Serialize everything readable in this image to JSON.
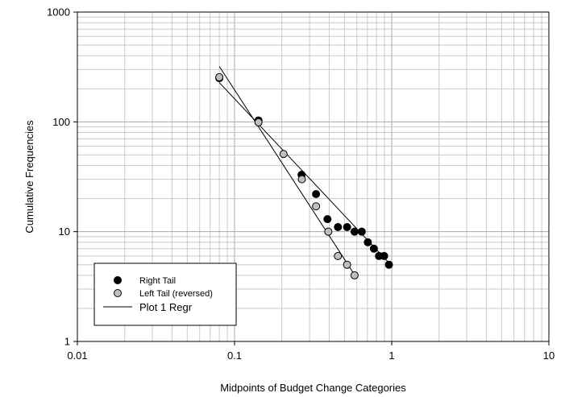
{
  "chart_data": {
    "type": "scatter",
    "title": "",
    "xlabel": "Midpoints of Budget Change Categories",
    "ylabel": "Cumulative Frequencies",
    "xscale": "log",
    "yscale": "log",
    "xlim": [
      0.01,
      10
    ],
    "ylim": [
      1,
      1000
    ],
    "grid": true,
    "legend_position": "bottom-left",
    "x_tick_labels": [
      "0.01",
      "0.1",
      "1",
      "10"
    ],
    "y_tick_labels": [
      "1",
      "10",
      "100",
      "1000"
    ],
    "series": [
      {
        "name": "Right Tail",
        "marker": "filled-circle",
        "color": "#000000",
        "points": [
          {
            "x": 0.08,
            "y": 250
          },
          {
            "x": 0.142,
            "y": 103
          },
          {
            "x": 0.267,
            "y": 33
          },
          {
            "x": 0.33,
            "y": 22
          },
          {
            "x": 0.39,
            "y": 13
          },
          {
            "x": 0.455,
            "y": 11
          },
          {
            "x": 0.52,
            "y": 11
          },
          {
            "x": 0.58,
            "y": 10
          },
          {
            "x": 0.645,
            "y": 10
          },
          {
            "x": 0.705,
            "y": 8
          },
          {
            "x": 0.77,
            "y": 7
          },
          {
            "x": 0.83,
            "y": 6
          },
          {
            "x": 0.895,
            "y": 6
          },
          {
            "x": 0.96,
            "y": 5
          }
        ]
      },
      {
        "name": "Left Tail (reversed)",
        "marker": "gray-circle",
        "color": "#bfbfbf",
        "points": [
          {
            "x": 0.08,
            "y": 255
          },
          {
            "x": 0.142,
            "y": 99
          },
          {
            "x": 0.205,
            "y": 51
          },
          {
            "x": 0.268,
            "y": 30
          },
          {
            "x": 0.33,
            "y": 17
          },
          {
            "x": 0.395,
            "y": 10
          },
          {
            "x": 0.455,
            "y": 6
          },
          {
            "x": 0.52,
            "y": 5
          },
          {
            "x": 0.58,
            "y": 4
          }
        ]
      },
      {
        "name": "Plot 1 Regr",
        "marker": "line",
        "color": "#000000",
        "segments": [
          {
            "x1": 0.08,
            "y1": 228,
            "x2": 0.96,
            "y2": 5.2
          },
          {
            "x1": 0.08,
            "y1": 320,
            "x2": 0.59,
            "y2": 3.9
          }
        ]
      }
    ],
    "legend_items": [
      {
        "label": "Right Tail",
        "marker": "filled-circle"
      },
      {
        "label": "Left Tail (reversed)",
        "marker": "gray-circle"
      },
      {
        "label": "Plot 1 Regr",
        "marker": "line"
      }
    ]
  }
}
